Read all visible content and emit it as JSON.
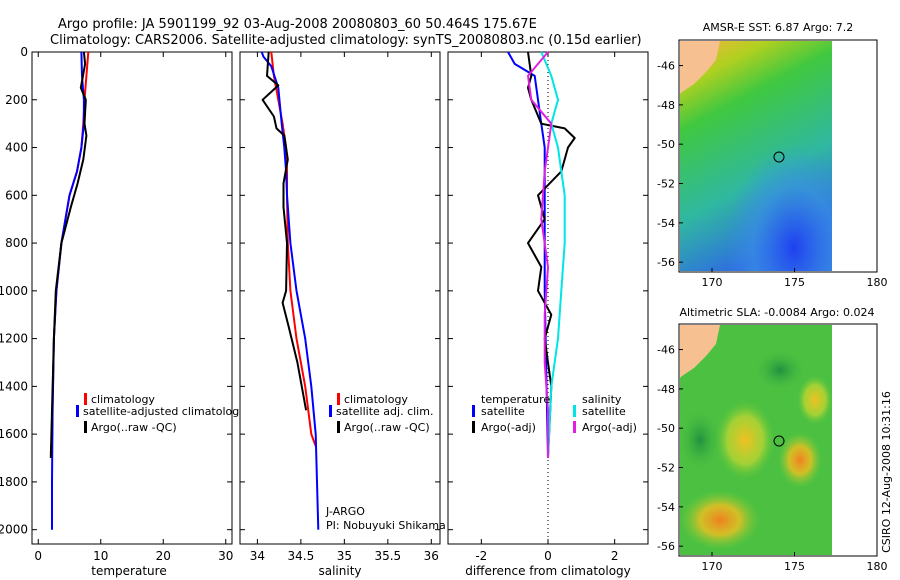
{
  "header": {
    "line1": "Argo profile: JA 5901199_92 03-Aug-2008 20080803_60 50.464S 175.67E",
    "line2": "Climatology: CARS2006. Satellite-adjusted climatology: synTS_20080803.nc (0.15d earlier)"
  },
  "footer_stamp": "CSIRO 12-Aug-2008 10:31:16",
  "colors": {
    "climatology": "#ff0000",
    "satellite": "#0000ff",
    "argo": "#000000",
    "cyan": "#00e5e5",
    "magenta": "#e020e0",
    "land": "#f7c090"
  },
  "chart_data": [
    {
      "type": "line",
      "xlabel": "temperature",
      "ylabel": "",
      "xlim": [
        -1,
        31
      ],
      "ylim": [
        2060,
        0
      ],
      "xticks": [
        "0",
        "10",
        "20",
        "30"
      ],
      "yticks": [
        "0",
        "200",
        "400",
        "600",
        "800",
        "1000",
        "1200",
        "1400",
        "1600",
        "1800",
        "2000"
      ],
      "legend": [
        "climatology",
        "satellite-adjusted climatology",
        "Argo(..raw -QC)"
      ],
      "series": [
        {
          "name": "climatology",
          "x": [
            8.0,
            7.7,
            7.4,
            7.2,
            6.9,
            6.2,
            5.0,
            3.7,
            2.9,
            2.5,
            2.2,
            2.0
          ],
          "y": [
            0,
            100,
            200,
            300,
            400,
            500,
            600,
            800,
            1000,
            1200,
            1600,
            1680
          ]
        },
        {
          "name": "satellite-adjusted climatology",
          "x": [
            6.9,
            7.0,
            7.3,
            7.3,
            6.9,
            6.2,
            5.0,
            3.7,
            2.9,
            2.5,
            2.3,
            2.2,
            2.2
          ],
          "y": [
            0,
            100,
            200,
            300,
            400,
            500,
            600,
            800,
            1000,
            1200,
            1500,
            1800,
            2000
          ]
        },
        {
          "name": "Argo(..raw -QC)",
          "x": [
            7.3,
            7.5,
            6.8,
            7.6,
            7.4,
            7.7,
            7.2,
            6.3,
            5.2,
            3.7,
            2.8,
            2.5,
            2.2,
            2.0
          ],
          "y": [
            0,
            50,
            150,
            200,
            300,
            350,
            450,
            550,
            650,
            800,
            1000,
            1200,
            1500,
            1700
          ]
        }
      ]
    },
    {
      "type": "line",
      "xlabel": "salinity",
      "ylabel": "",
      "xlim": [
        33.8,
        36.1
      ],
      "ylim": [
        2060,
        0
      ],
      "xticks": [
        "34",
        "34.5",
        "35",
        "35.5",
        "36"
      ],
      "legend": [
        "climatology",
        "satellite adj. clim.",
        "Argo(..raw -QC)"
      ],
      "annotation": [
        "J-ARGO",
        "PI: Nobuyuki Shikama"
      ],
      "series": [
        {
          "name": "climatology",
          "x": [
            34.16,
            34.19,
            34.24,
            34.29,
            34.33,
            34.34,
            34.34,
            34.35,
            34.38,
            34.45,
            34.55,
            34.62,
            34.67
          ],
          "y": [
            0,
            100,
            200,
            300,
            400,
            500,
            600,
            800,
            1000,
            1200,
            1400,
            1600,
            1650
          ]
        },
        {
          "name": "satellite adj. clim.",
          "x": [
            34.05,
            34.07,
            34.16,
            34.24,
            34.28,
            34.31,
            34.33,
            34.34,
            34.38,
            34.45,
            34.55,
            34.62,
            34.67,
            34.7
          ],
          "y": [
            0,
            20,
            60,
            150,
            300,
            400,
            500,
            600,
            800,
            1000,
            1200,
            1400,
            1600,
            2000
          ]
        },
        {
          "name": "Argo(..raw -QC)",
          "x": [
            34.13,
            34.11,
            34.24,
            34.06,
            34.19,
            34.22,
            34.31,
            34.35,
            34.3,
            34.3,
            34.34,
            34.33,
            34.29,
            34.36,
            34.46,
            34.56
          ],
          "y": [
            0,
            100,
            140,
            200,
            270,
            320,
            350,
            450,
            550,
            650,
            800,
            1000,
            1050,
            1150,
            1300,
            1500
          ]
        }
      ]
    },
    {
      "type": "line",
      "xlabel": "difference from climatology",
      "ylabel": "",
      "xlim": [
        -3.0,
        3.0
      ],
      "ylim": [
        2060,
        0
      ],
      "xticks": [
        "-2",
        "0",
        "2"
      ],
      "legend_headers": [
        "temperature",
        "salinity"
      ],
      "legend": [
        "satellite",
        "Argo(-adj)",
        "satellite",
        "Argo(-adj)"
      ],
      "series": [
        {
          "name": "temperature satellite",
          "x": [
            -1.2,
            -1.0,
            -0.4,
            -0.3,
            -0.2,
            -0.1,
            -0.1,
            -0.1,
            0.0
          ],
          "y": [
            0,
            50,
            100,
            200,
            300,
            400,
            600,
            1000,
            1700
          ]
        },
        {
          "name": "temperature Argo(-adj)",
          "x": [
            -0.6,
            -0.5,
            -0.6,
            -0.5,
            -0.2,
            0.5,
            0.8,
            0.6,
            0.4,
            -0.3,
            -0.1,
            -0.6,
            -0.2,
            -0.3,
            0.1,
            -0.1,
            0.1,
            0.0
          ],
          "y": [
            0,
            100,
            150,
            200,
            300,
            320,
            360,
            400,
            500,
            600,
            700,
            800,
            900,
            1000,
            1100,
            1200,
            1400,
            1700
          ]
        },
        {
          "name": "salinity satellite",
          "x": [
            -0.2,
            0.1,
            0.3,
            0.1,
            0.3,
            0.4,
            0.5,
            0.5,
            0.4,
            0.3,
            0.1,
            0.0
          ],
          "y": [
            0,
            100,
            200,
            300,
            400,
            500,
            600,
            800,
            1000,
            1200,
            1400,
            1700
          ]
        },
        {
          "name": "salinity Argo(-adj)",
          "x": [
            0.0,
            -0.3,
            -0.6,
            -0.5,
            0.1,
            -0.1,
            -0.2,
            0.0,
            -0.1,
            -0.1,
            -0.1,
            0.0,
            0.0
          ],
          "y": [
            0,
            50,
            100,
            200,
            300,
            500,
            700,
            900,
            1100,
            1200,
            1300,
            1500,
            1700
          ]
        }
      ]
    },
    {
      "type": "heatmap",
      "title": "AMSR-E SST: 6.87 Argo: 7.2",
      "xlim": [
        168,
        180
      ],
      "ylim": [
        -56.5,
        -44.7
      ],
      "xticks": [
        "170",
        "175",
        "180"
      ],
      "yticks": [
        "-46",
        "-48",
        "-50",
        "-52",
        "-54",
        "-56"
      ],
      "argo_position": [
        175.67,
        -50.464
      ]
    },
    {
      "type": "heatmap",
      "title": "Altimetric SLA: -0.0084 Argo: 0.024",
      "xlim": [
        168,
        180
      ],
      "ylim": [
        -56.5,
        -44.7
      ],
      "xticks": [
        "170",
        "175",
        "180"
      ],
      "yticks": [
        "-46",
        "-48",
        "-50",
        "-52",
        "-54",
        "-56"
      ],
      "argo_position": [
        175.67,
        -50.464
      ]
    }
  ]
}
